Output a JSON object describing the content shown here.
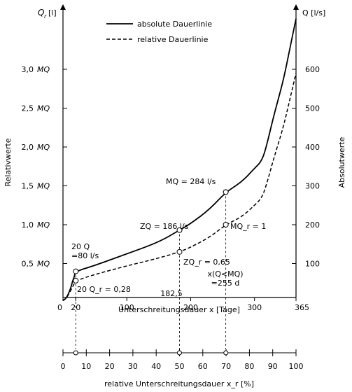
{
  "chart_data": {
    "type": "line",
    "left_axis": {
      "label": "Relativwerte",
      "top_label": "Q",
      "top_label_sub": "r",
      "top_label_unit": "[l]",
      "ticks": [
        {
          "value": 0.5,
          "num": "0,5",
          "unit": "MQ"
        },
        {
          "value": 1.0,
          "num": "1,0",
          "unit": "MQ"
        },
        {
          "value": 1.5,
          "num": "1,5",
          "unit": "MQ"
        },
        {
          "value": 2.0,
          "num": "2,0",
          "unit": "MQ"
        },
        {
          "value": 2.5,
          "num": "2,5",
          "unit": "MQ"
        },
        {
          "value": 3.0,
          "num": "3,0",
          "unit": "MQ"
        }
      ]
    },
    "right_axis": {
      "label": "Absolutwerte",
      "top_label": "Q [l/s]",
      "ticks": [
        {
          "value": 100,
          "text": "100"
        },
        {
          "value": 200,
          "text": "200"
        },
        {
          "value": 300,
          "text": "300"
        },
        {
          "value": 400,
          "text": "400"
        },
        {
          "value": 500,
          "text": "500"
        },
        {
          "value": 600,
          "text": "600"
        }
      ]
    },
    "x_axis": {
      "label": "Unterschreitungsdauer x [Tage]",
      "range": [
        0,
        365
      ],
      "ticks": [
        {
          "value": 0,
          "text": "0"
        },
        {
          "value": 20,
          "text": "20"
        },
        {
          "value": 100,
          "text": "100"
        },
        {
          "value": 200,
          "text": "200"
        },
        {
          "value": 300,
          "text": "300"
        },
        {
          "value": 365,
          "text": "365"
        }
      ]
    },
    "x2_axis": {
      "label": "relative Unterschreitungsdauer x_r [%]",
      "ticks": [
        {
          "value": 0,
          "text": "0"
        },
        {
          "value": 10,
          "text": "10"
        },
        {
          "value": 20,
          "text": "20"
        },
        {
          "value": 30,
          "text": "30"
        },
        {
          "value": 40,
          "text": "40"
        },
        {
          "value": 50,
          "text": "50"
        },
        {
          "value": 60,
          "text": "60"
        },
        {
          "value": 70,
          "text": "70"
        },
        {
          "value": 80,
          "text": "80"
        },
        {
          "value": 90,
          "text": "90"
        },
        {
          "value": 100,
          "text": "100"
        }
      ]
    },
    "legend": {
      "position": "top-center",
      "items": [
        {
          "label": "absolute Dauerlinie",
          "style": "solid"
        },
        {
          "label": "relative Dauerlinie",
          "style": "dashed"
        }
      ]
    },
    "series": [
      {
        "name": "absolute Dauerlinie",
        "style": "solid",
        "axis": "right",
        "points": [
          [
            0,
            5
          ],
          [
            5,
            10
          ],
          [
            12,
            35
          ],
          [
            15,
            55
          ],
          [
            18,
            68
          ],
          [
            20,
            80
          ],
          [
            50,
            95
          ],
          [
            100,
            125
          ],
          [
            150,
            155
          ],
          [
            182.5,
            186
          ],
          [
            200,
            203
          ],
          [
            230,
            240
          ],
          [
            255,
            284
          ],
          [
            280,
            310
          ],
          [
            300,
            345
          ],
          [
            312,
            365
          ],
          [
            320,
            410
          ],
          [
            330,
            480
          ],
          [
            345,
            570
          ],
          [
            355,
            650
          ],
          [
            365,
            730
          ]
        ]
      },
      {
        "name": "relative Dauerlinie",
        "style": "dashed",
        "axis": "left",
        "points": [
          [
            0,
            0.03
          ],
          [
            5,
            0.05
          ],
          [
            10,
            0.12
          ],
          [
            15,
            0.2
          ],
          [
            20,
            0.28
          ],
          [
            50,
            0.36
          ],
          [
            100,
            0.47
          ],
          [
            150,
            0.57
          ],
          [
            182.5,
            0.65
          ],
          [
            200,
            0.71
          ],
          [
            230,
            0.84
          ],
          [
            255,
            1.0
          ],
          [
            280,
            1.1
          ],
          [
            300,
            1.25
          ],
          [
            312,
            1.35
          ],
          [
            320,
            1.55
          ],
          [
            330,
            1.85
          ],
          [
            345,
            2.25
          ],
          [
            355,
            2.6
          ],
          [
            365,
            2.95
          ]
        ]
      }
    ],
    "annotations": [
      {
        "x": 20,
        "point": "abs",
        "y": 80,
        "lines": [
          "20 Q",
          "=80 l/s"
        ]
      },
      {
        "x": 20,
        "point": "rel",
        "y": 0.28,
        "lines": [
          "20 Q_r = 0,28"
        ]
      },
      {
        "x": 182.5,
        "point": "abs",
        "y": 186,
        "lines": [
          "ZQ = 186 l/s"
        ]
      },
      {
        "x": 182.5,
        "point": "rel",
        "y": 0.65,
        "lines": [
          "ZQ_r = 0,65"
        ]
      },
      {
        "x": 255,
        "point": "abs",
        "y": 284,
        "lines": [
          "MQ = 284 l/s"
        ]
      },
      {
        "x": 255,
        "point": "rel",
        "y": 1.0,
        "lines": [
          "MQ_r = 1"
        ]
      },
      {
        "x": 182.5,
        "lines": [
          "182,5"
        ]
      },
      {
        "x": 255,
        "lines": [
          "x(Q<MQ)",
          "=255 d"
        ]
      }
    ]
  }
}
